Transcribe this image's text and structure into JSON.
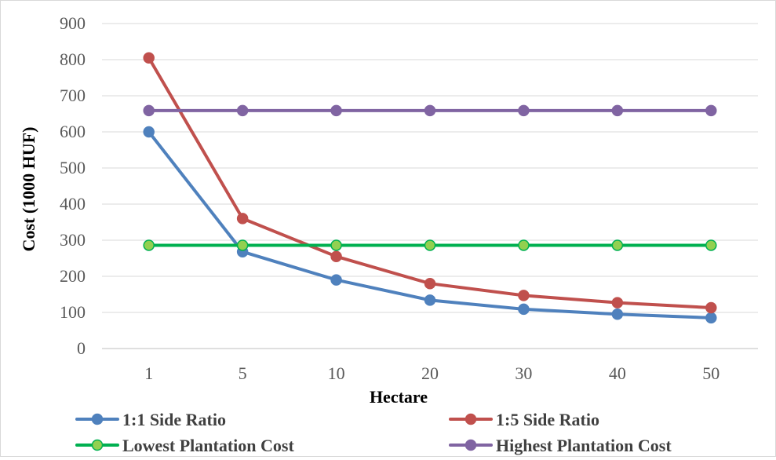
{
  "chart_data": {
    "type": "line",
    "title": "",
    "xlabel": "Hectare",
    "ylabel": "Cost (1000 HUF)",
    "categories": [
      "1",
      "5",
      "10",
      "20",
      "30",
      "40",
      "50"
    ],
    "ylim": [
      0,
      900
    ],
    "yticks": [
      0,
      100,
      200,
      300,
      400,
      500,
      600,
      700,
      800,
      900
    ],
    "grid": true,
    "legend_position": "bottom",
    "series": [
      {
        "name": "1:1 Side Ratio",
        "color": "#4f81bd",
        "marker_fill": "#4f81bd",
        "values": [
          600,
          268,
          190,
          134,
          109,
          95,
          85
        ]
      },
      {
        "name": "1:5 Side Ratio",
        "color": "#c0504d",
        "marker_fill": "#c0504d",
        "values": [
          805,
          360,
          255,
          180,
          147,
          127,
          113
        ]
      },
      {
        "name": "Lowest Plantation Cost",
        "color": "#00b050",
        "marker_fill": "#92d050",
        "values": [
          286,
          286,
          286,
          286,
          286,
          286,
          286
        ]
      },
      {
        "name": "Highest Plantation Cost",
        "color": "#8064a2",
        "marker_fill": "#8064a2",
        "values": [
          659,
          659,
          659,
          659,
          659,
          659,
          659
        ]
      }
    ]
  }
}
